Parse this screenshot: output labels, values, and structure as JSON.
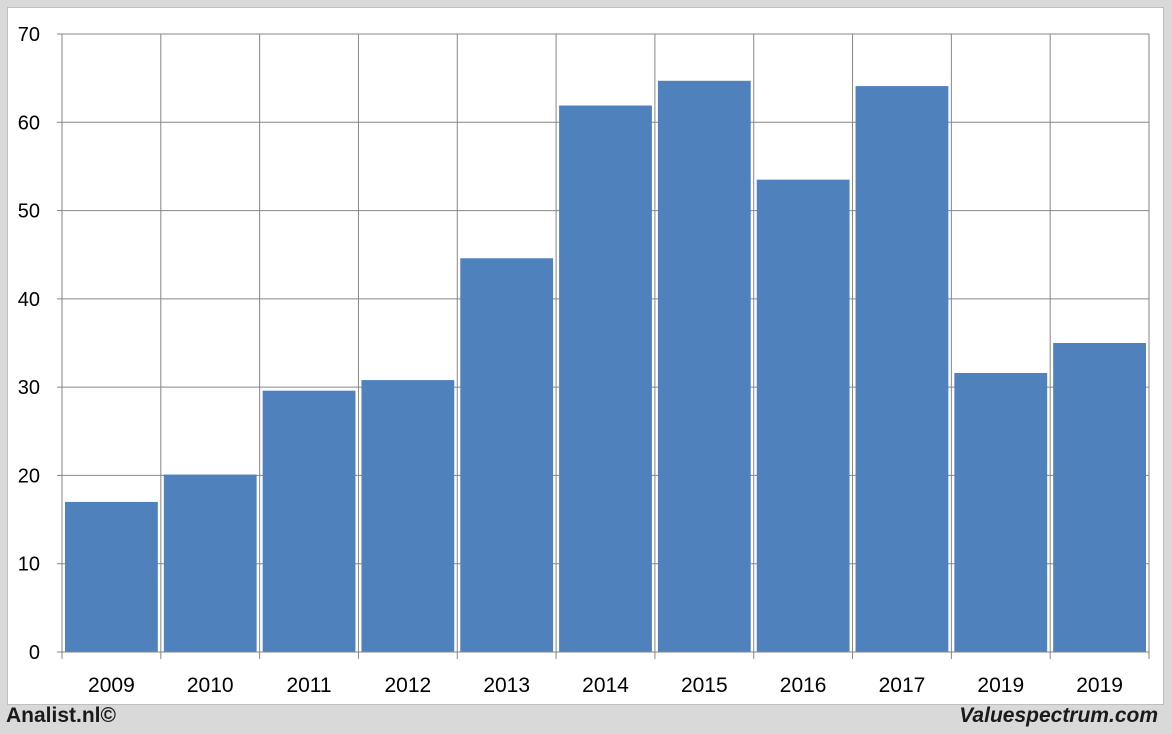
{
  "chart_data": {
    "type": "bar",
    "categories": [
      "2009",
      "2010",
      "2011",
      "2012",
      "2013",
      "2014",
      "2015",
      "2016",
      "2017",
      "2019",
      "2019"
    ],
    "values": [
      17.0,
      20.1,
      29.6,
      30.8,
      44.6,
      61.9,
      64.7,
      53.5,
      64.1,
      31.6,
      35.0
    ],
    "ylim": [
      0,
      70
    ],
    "yticks": [
      0,
      10,
      20,
      30,
      40,
      50,
      60,
      70
    ],
    "grid": true,
    "colors": {
      "bar": "#4f81bd",
      "grid": "#868686",
      "axis_text": "#000000"
    }
  },
  "footer": {
    "left": "Analist.nl©",
    "right": "Valuespectrum.com"
  }
}
